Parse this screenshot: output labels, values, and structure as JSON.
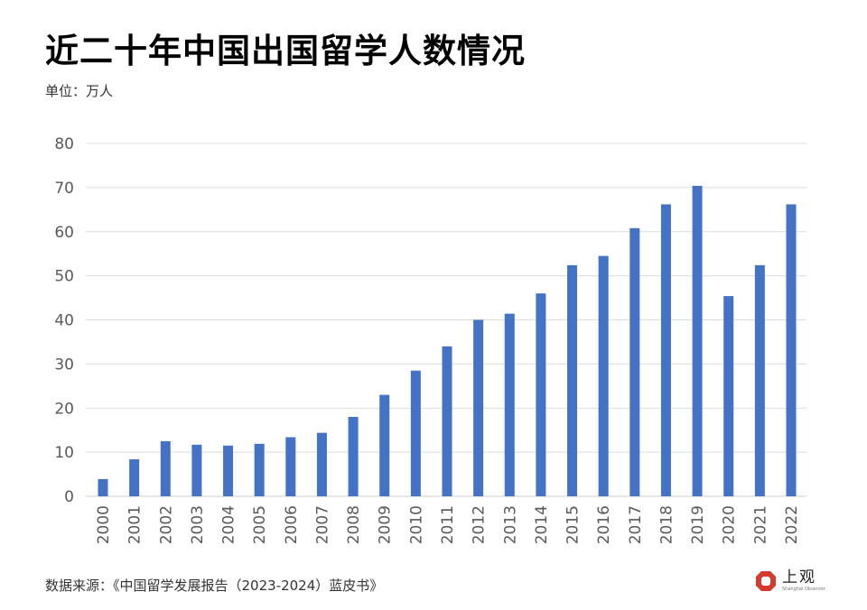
{
  "title": "近二十年中国出国留学人数情况",
  "unit_label": "单位：万人",
  "source": "数据来源：《中国留学发展报告（2023-2024）蓝皮书》",
  "logo": {
    "name": "上观",
    "subtext": "Shanghai Observer",
    "color": "#d63a2f"
  },
  "chart_data": {
    "type": "bar",
    "title": "近二十年中国出国留学人数情况",
    "ylabel": "单位：万人",
    "xlabel": "",
    "ylim": [
      0,
      80
    ],
    "yticks": [
      0,
      10,
      20,
      30,
      40,
      50,
      60,
      70,
      80
    ],
    "grid": true,
    "bar_color": "#4472c4",
    "categories": [
      "2000",
      "2001",
      "2002",
      "2003",
      "2004",
      "2005",
      "2006",
      "2007",
      "2008",
      "2009",
      "2010",
      "2011",
      "2012",
      "2013",
      "2014",
      "2015",
      "2016",
      "2017",
      "2018",
      "2019",
      "2020",
      "2021",
      "2022"
    ],
    "values": [
      3.9,
      8.4,
      12.5,
      11.7,
      11.5,
      11.9,
      13.4,
      14.4,
      18.0,
      23.0,
      28.5,
      34.0,
      40.0,
      41.4,
      46.0,
      52.4,
      54.5,
      60.8,
      66.2,
      70.4,
      45.4,
      52.4,
      66.2
    ]
  }
}
